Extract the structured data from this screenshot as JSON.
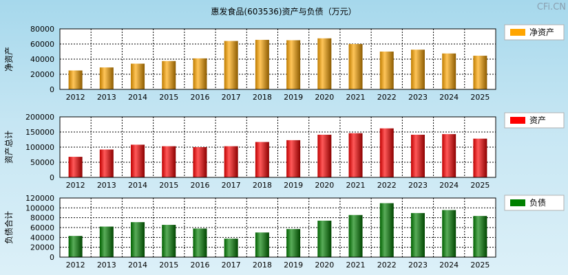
{
  "watermark": "CFi.CN",
  "chart_data": {
    "type": "bar",
    "title": "惠发食品(603536)资产与负债（万元）",
    "categories": [
      "2012",
      "2013",
      "2014",
      "2015",
      "2016",
      "2017",
      "2018",
      "2019",
      "2020",
      "2021",
      "2022",
      "2023",
      "2024",
      "2025"
    ],
    "panels": [
      {
        "id": "net-assets",
        "ylabel": "净资产",
        "legend": "净资产",
        "color": "#ffa500",
        "ylim": [
          0,
          80000
        ],
        "yticks": [
          "80000",
          "60000",
          "40000",
          "20000",
          "0"
        ],
        "values": [
          25000,
          29000,
          34000,
          37500,
          41000,
          64000,
          65500,
          65000,
          67500,
          60000,
          50000,
          52500,
          47500,
          44500
        ]
      },
      {
        "id": "total-assets",
        "ylabel": "资产总计",
        "legend": "资产",
        "color": "#ff0000",
        "ylim": [
          0,
          200000
        ],
        "yticks": [
          "200000",
          "150000",
          "100000",
          "50000",
          "0"
        ],
        "values": [
          68000,
          92000,
          108000,
          103000,
          100000,
          103000,
          117000,
          123000,
          141000,
          146000,
          162000,
          141000,
          143000,
          128000
        ]
      },
      {
        "id": "total-liabilities",
        "ylabel": "负债合计",
        "legend": "负债",
        "color": "#008000",
        "ylim": [
          0,
          120000
        ],
        "yticks": [
          "120000",
          "100000",
          "80000",
          "60000",
          "40000",
          "20000",
          "0"
        ],
        "values": [
          43000,
          62000,
          71000,
          65500,
          58000,
          37500,
          50000,
          57000,
          74000,
          85500,
          109500,
          89500,
          95500,
          83500
        ]
      }
    ]
  }
}
